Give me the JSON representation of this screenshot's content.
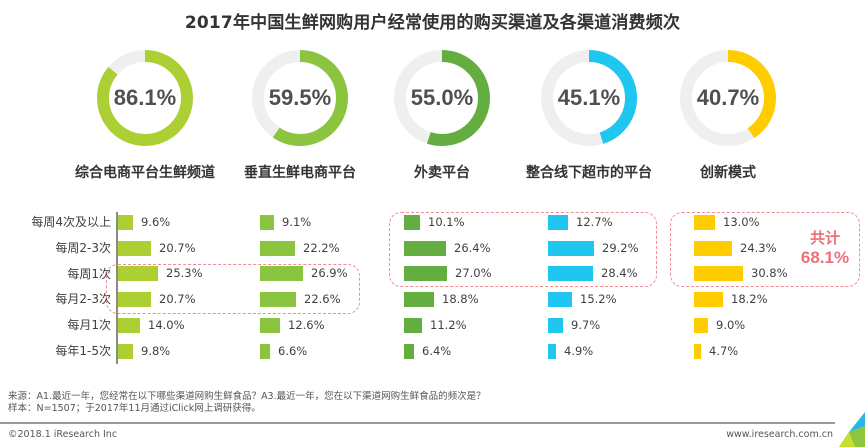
{
  "title": "2017年中国生鲜网购用户经常使用的购买渠道及各渠道消费频次",
  "channels": [
    {
      "name": "综合电商平台生鲜频道",
      "usage_label": "86.1%",
      "usage": 86.1,
      "color": "#acd033"
    },
    {
      "name": "垂直生鲜电商平台",
      "usage_label": "59.5%",
      "usage": 59.5,
      "color": "#8bc43f"
    },
    {
      "name": "外卖平台",
      "usage_label": "55.0%",
      "usage": 55.0,
      "color": "#64ad41"
    },
    {
      "name": "整合线下超市的平台",
      "usage_label": "45.1%",
      "usage": 45.1,
      "color": "#1fc6f0"
    },
    {
      "name": "创新模式",
      "usage_label": "40.7%",
      "usage": 40.7,
      "color": "#ffcc00"
    }
  ],
  "frequency_labels": [
    "每周4次及以上",
    "每周2-3次",
    "每周1次",
    "每月2-3次",
    "每月1次",
    "每年1-5次"
  ],
  "frequency_values": [
    {
      "channel": "综合电商平台生鲜频道",
      "values": [
        9.6,
        20.7,
        25.3,
        20.7,
        14.0,
        9.8
      ],
      "labels": [
        "9.6%",
        "20.7%",
        "25.3%",
        "20.7%",
        "14.0%",
        "9.8%"
      ]
    },
    {
      "channel": "垂直生鲜电商平台",
      "values": [
        9.1,
        22.2,
        26.9,
        22.6,
        12.6,
        6.6
      ],
      "labels": [
        "9.1%",
        "22.2%",
        "26.9%",
        "22.6%",
        "12.6%",
        "6.6%"
      ]
    },
    {
      "channel": "外卖平台",
      "values": [
        10.1,
        26.4,
        27.0,
        18.8,
        11.2,
        6.4
      ],
      "labels": [
        "10.1%",
        "26.4%",
        "27.0%",
        "18.8%",
        "11.2%",
        "6.4%"
      ]
    },
    {
      "channel": "整合线下超市的平台",
      "values": [
        12.7,
        29.2,
        28.4,
        15.2,
        9.7,
        4.9
      ],
      "labels": [
        "12.7%",
        "29.2%",
        "28.4%",
        "15.2%",
        "9.7%",
        "4.9%"
      ]
    },
    {
      "channel": "创新模式",
      "values": [
        13.0,
        24.3,
        30.8,
        18.2,
        9.0,
        4.7
      ],
      "labels": [
        "13.0%",
        "24.3%",
        "30.8%",
        "18.2%",
        "9.0%",
        "4.7%"
      ]
    }
  ],
  "annotation": {
    "label": "共计",
    "value": "68.1%"
  },
  "source_line1": "来源：A1.最近一年，您经常在以下哪些渠道网购生鲜食品？A3.最近一年，您在以下渠道网购生鲜食品的频次是？",
  "source_line2": "样本：N=1507；于2017年11月通过iClick网上调研获得。",
  "copyright": "©2018.1 iResearch Inc",
  "website": "www.iresearch.com.cn",
  "chart_data": [
    {
      "type": "pie",
      "subtype": "donut",
      "title": "2017年中国生鲜网购用户经常使用的购买渠道",
      "categories": [
        "综合电商平台生鲜频道",
        "垂直生鲜电商平台",
        "外卖平台",
        "整合线下超市的平台",
        "创新模式"
      ],
      "values": [
        86.1,
        59.5,
        55.0,
        45.1,
        40.7
      ],
      "unit": "%"
    },
    {
      "type": "bar",
      "orientation": "horizontal",
      "title": "各渠道消费频次",
      "categories": [
        "每周4次及以上",
        "每周2-3次",
        "每周1次",
        "每月2-3次",
        "每月1次",
        "每年1-5次"
      ],
      "series": [
        {
          "name": "综合电商平台生鲜频道",
          "values": [
            9.6,
            20.7,
            25.3,
            20.7,
            14.0,
            9.8
          ]
        },
        {
          "name": "垂直生鲜电商平台",
          "values": [
            9.1,
            22.2,
            26.9,
            22.6,
            12.6,
            6.6
          ]
        },
        {
          "name": "外卖平台",
          "values": [
            10.1,
            26.4,
            27.0,
            18.8,
            11.2,
            6.4
          ]
        },
        {
          "name": "整合线下超市的平台",
          "values": [
            12.7,
            29.2,
            28.4,
            15.2,
            9.7,
            4.9
          ]
        },
        {
          "name": "创新模式",
          "values": [
            13.0,
            24.3,
            30.8,
            18.2,
            9.0,
            4.7
          ]
        }
      ],
      "annotations": [
        "共计 68.1% (创新模式: 每周4次及以上 + 每周2-3次 + 每周1次)"
      ],
      "unit": "%",
      "grid": false
    }
  ]
}
